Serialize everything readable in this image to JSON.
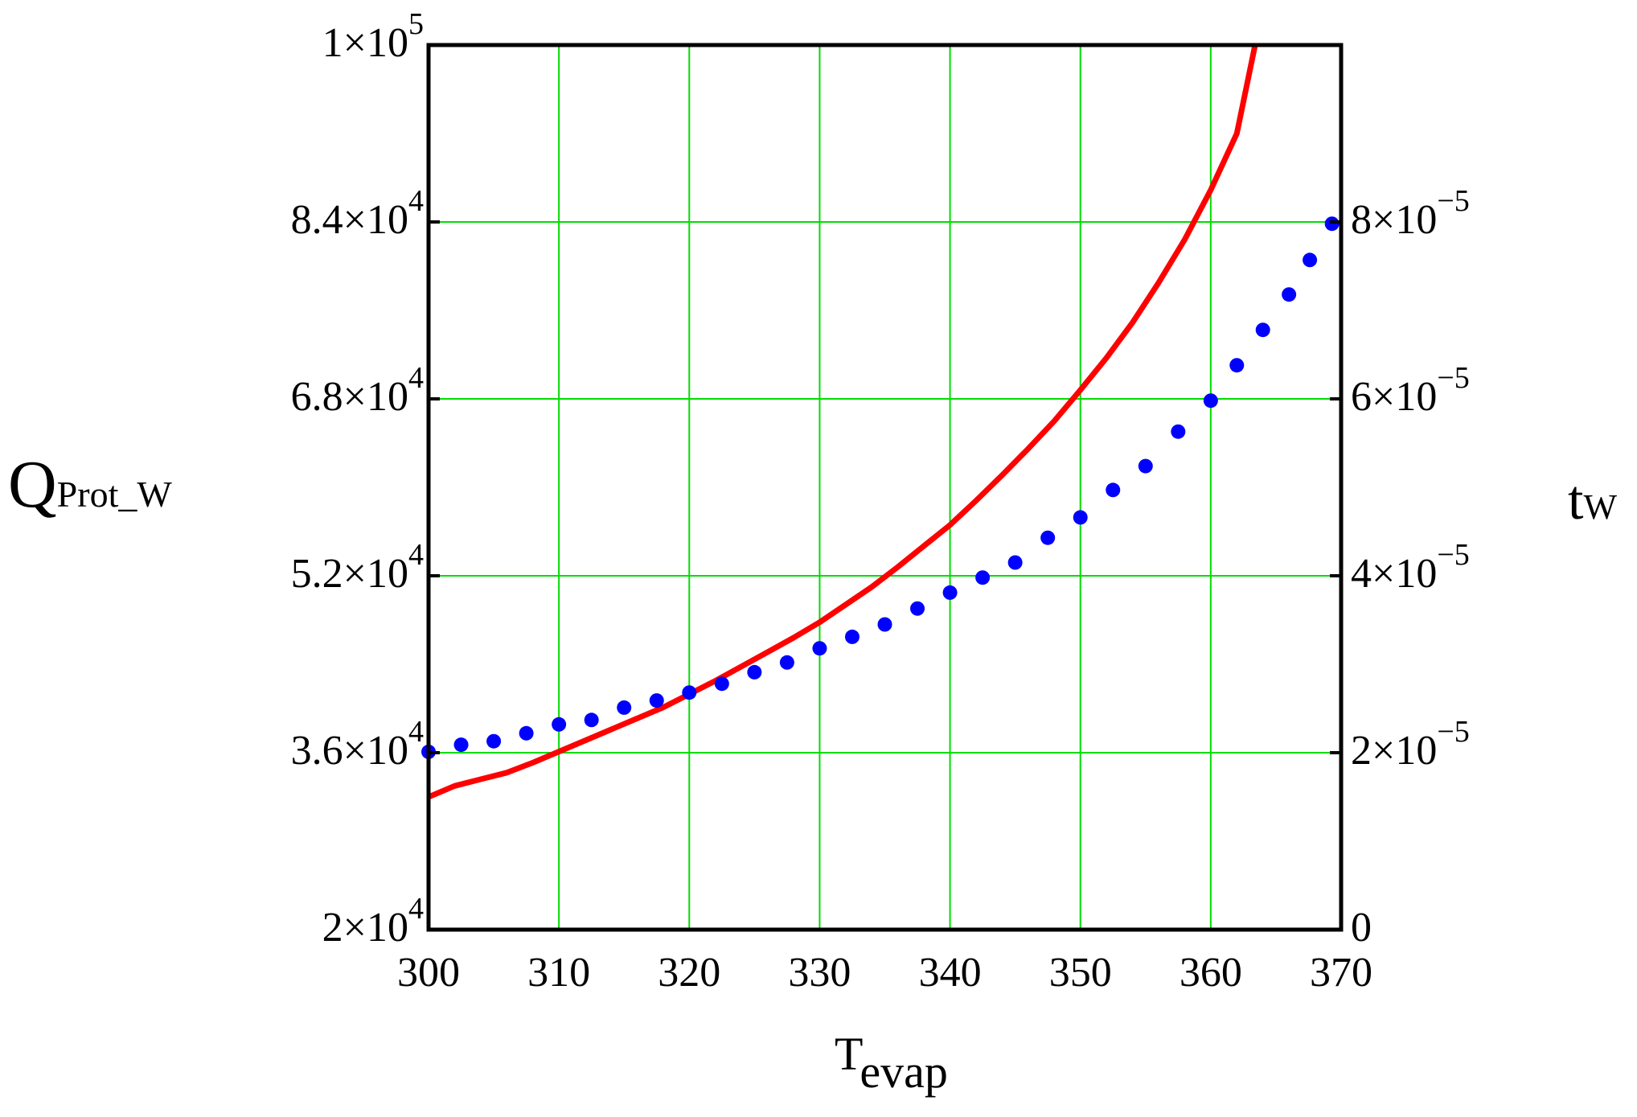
{
  "chart_data": {
    "type": "line",
    "title": "",
    "xlabel": {
      "main": "T",
      "sub": "evap"
    },
    "ylabel_left": {
      "main": "Q",
      "sub": "Prot_W"
    },
    "ylabel_right": {
      "main": "t",
      "sub": "W"
    },
    "xlim": [
      300,
      370
    ],
    "ylim_left": [
      20000,
      100000
    ],
    "ylim_right": [
      0,
      0.0001
    ],
    "grid": true,
    "x_ticks": [
      300,
      310,
      320,
      330,
      340,
      350,
      360,
      370
    ],
    "x_tick_labels": [
      "300",
      "310",
      "320",
      "330",
      "340",
      "350",
      "360",
      "370"
    ],
    "left_ticks": [
      {
        "value": 20000,
        "mant": "2",
        "exp": "4"
      },
      {
        "value": 36000,
        "mant": "3.6",
        "exp": "4"
      },
      {
        "value": 52000,
        "mant": "5.2",
        "exp": "4"
      },
      {
        "value": 68000,
        "mant": "6.8",
        "exp": "4"
      },
      {
        "value": 84000,
        "mant": "8.4",
        "exp": "4"
      },
      {
        "value": 100000,
        "mant": "1",
        "exp": "5"
      }
    ],
    "right_ticks": [
      {
        "value": 0,
        "mant": "0",
        "exp": ""
      },
      {
        "value": 2e-05,
        "mant": "2",
        "exp": "−5"
      },
      {
        "value": 4e-05,
        "mant": "4",
        "exp": "−5"
      },
      {
        "value": 6e-05,
        "mant": "6",
        "exp": "−5"
      },
      {
        "value": 8e-05,
        "mant": "8",
        "exp": "−5"
      }
    ],
    "series": [
      {
        "axis": "left",
        "style": "line",
        "color": "#ff0000",
        "points": [
          [
            300,
            32000
          ],
          [
            302,
            33000
          ],
          [
            304,
            33600
          ],
          [
            306,
            34200
          ],
          [
            308,
            35100
          ],
          [
            310,
            36100
          ],
          [
            312,
            37100
          ],
          [
            314,
            38100
          ],
          [
            316,
            39100
          ],
          [
            318,
            40100
          ],
          [
            320,
            41300
          ],
          [
            322,
            42500
          ],
          [
            324,
            43800
          ],
          [
            326,
            45100
          ],
          [
            328,
            46400
          ],
          [
            330,
            47800
          ],
          [
            332,
            49400
          ],
          [
            334,
            51000
          ],
          [
            336,
            52800
          ],
          [
            338,
            54700
          ],
          [
            340,
            56600
          ],
          [
            342,
            58800
          ],
          [
            344,
            61100
          ],
          [
            346,
            63500
          ],
          [
            348,
            66000
          ],
          [
            350,
            68800
          ],
          [
            352,
            71700
          ],
          [
            354,
            74900
          ],
          [
            356,
            78500
          ],
          [
            358,
            82400
          ],
          [
            360,
            86900
          ],
          [
            362,
            92000
          ],
          [
            363.4,
            100000
          ]
        ]
      },
      {
        "axis": "right",
        "style": "dots",
        "color": "#0000ff",
        "points": [
          [
            300,
            2.01e-05
          ],
          [
            302.5,
            2.09e-05
          ],
          [
            305,
            2.13e-05
          ],
          [
            307.5,
            2.22e-05
          ],
          [
            310,
            2.32e-05
          ],
          [
            312.5,
            2.37e-05
          ],
          [
            315,
            2.51e-05
          ],
          [
            317.5,
            2.59e-05
          ],
          [
            320,
            2.68e-05
          ],
          [
            322.5,
            2.78e-05
          ],
          [
            325,
            2.91e-05
          ],
          [
            327.5,
            3.02e-05
          ],
          [
            330,
            3.18e-05
          ],
          [
            332.5,
            3.31e-05
          ],
          [
            335,
            3.45e-05
          ],
          [
            337.5,
            3.63e-05
          ],
          [
            340,
            3.81e-05
          ],
          [
            342.5,
            3.98e-05
          ],
          [
            345,
            4.15e-05
          ],
          [
            347.5,
            4.43e-05
          ],
          [
            350,
            4.66e-05
          ],
          [
            352.5,
            4.97e-05
          ],
          [
            355,
            5.24e-05
          ],
          [
            357.5,
            5.63e-05
          ],
          [
            360,
            5.98e-05
          ],
          [
            362,
            6.38e-05
          ],
          [
            364,
            6.78e-05
          ],
          [
            366,
            7.18e-05
          ],
          [
            367.6,
            7.57e-05
          ],
          [
            369.3,
            7.98e-05
          ]
        ]
      }
    ],
    "colors": {
      "grid": "#00dd00",
      "frame": "#000000"
    }
  }
}
